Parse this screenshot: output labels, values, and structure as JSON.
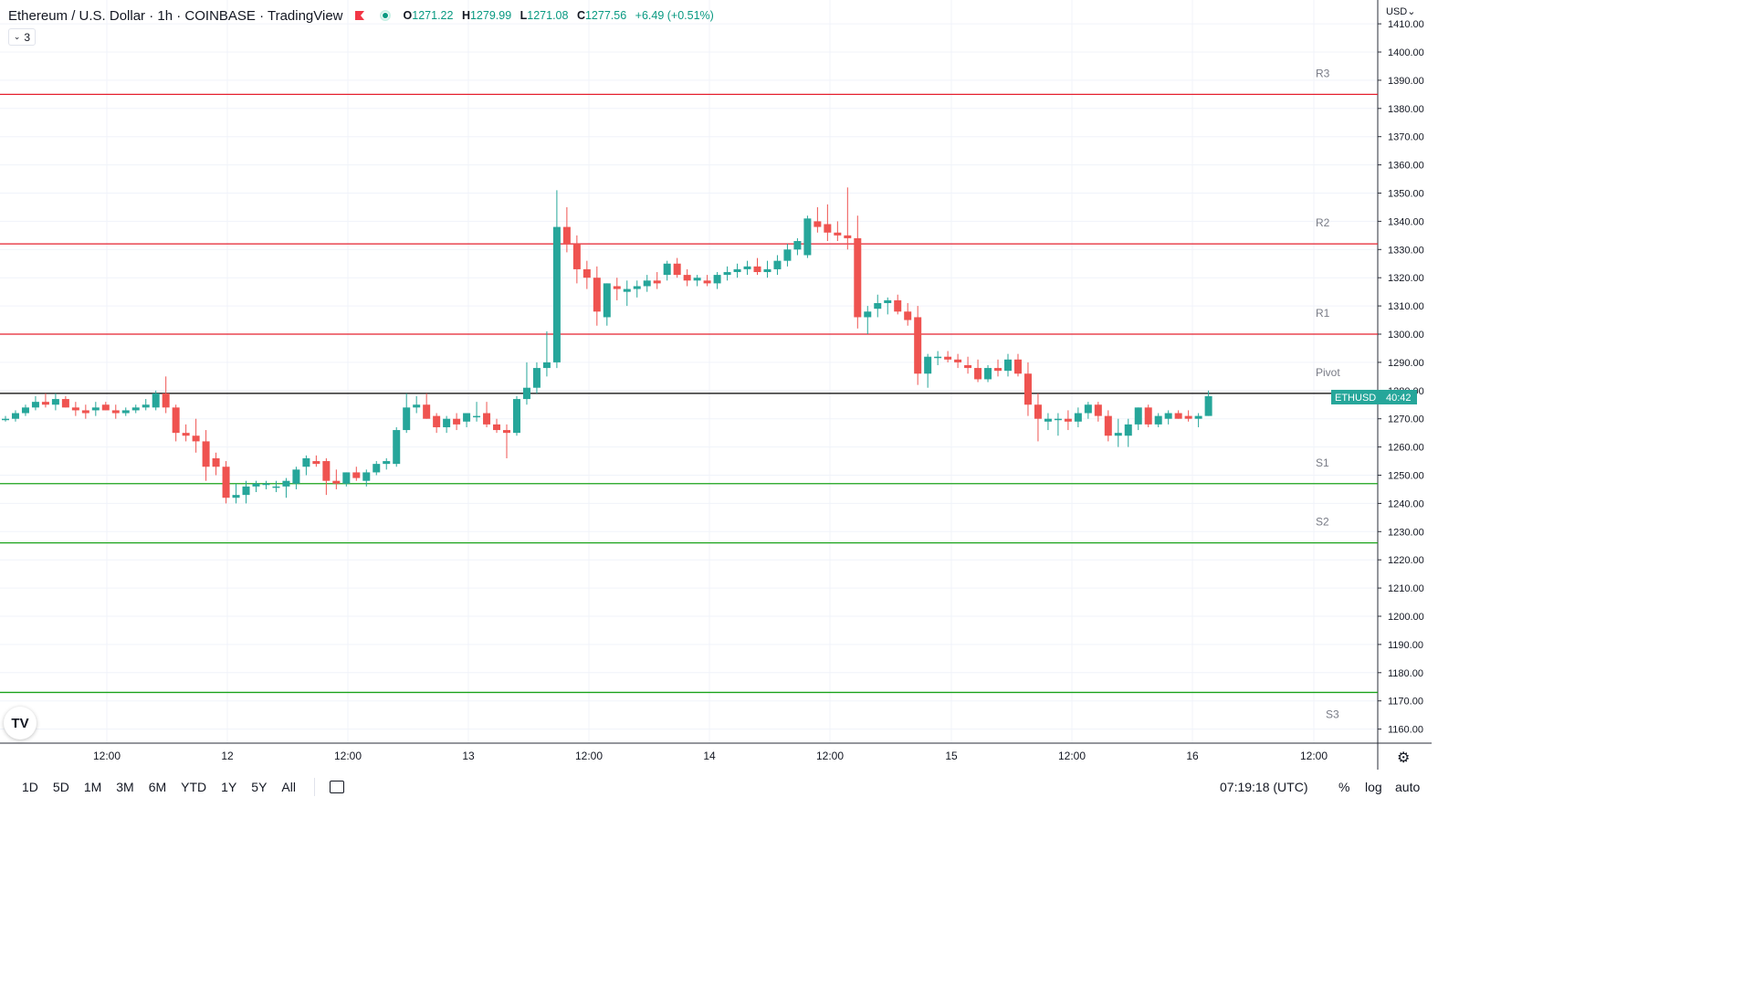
{
  "header": {
    "title": "Ethereum / U.S. Dollar · 1h · COINBASE · TradingView",
    "open_label": "O",
    "open": "1271.22",
    "high_label": "H",
    "high": "1279.99",
    "low_label": "L",
    "low": "1271.08",
    "close_label": "C",
    "close": "1277.56",
    "change": "+6.49 (+0.51%)",
    "indicator_count": "3"
  },
  "currency_label": "USD",
  "price_tag": {
    "symbol": "ETHUSD",
    "countdown": "40:42"
  },
  "logo_text": "TV",
  "footer": {
    "ranges": [
      "1D",
      "5D",
      "1M",
      "3M",
      "6M",
      "YTD",
      "1Y",
      "5Y",
      "All"
    ],
    "clock": "07:19:18 (UTC)",
    "percent": "%",
    "log": "log",
    "auto": "auto"
  },
  "colors": {
    "up": "#26a69a",
    "down": "#ef5350",
    "resistance": "#e5202f",
    "support": "#1aa31a",
    "pivot": "#000000",
    "grid": "#f0f3fa",
    "tag": "#26a69a"
  },
  "chart_data": {
    "type": "candlestick",
    "title": "Ethereum / U.S. Dollar · 1h · COINBASE · TradingView",
    "ylim": [
      1155,
      1415
    ],
    "y_ticks": [
      1160,
      1170,
      1180,
      1190,
      1200,
      1210,
      1220,
      1230,
      1240,
      1250,
      1260,
      1270,
      1280,
      1290,
      1300,
      1310,
      1320,
      1330,
      1340,
      1350,
      1360,
      1370,
      1380,
      1390,
      1400,
      1410
    ],
    "x_tick_labels": [
      "12:00",
      "12",
      "12:00",
      "13",
      "12:00",
      "14",
      "12:00",
      "15",
      "12:00",
      "16",
      "12:00"
    ],
    "levels": [
      {
        "name": "R3",
        "value": 1385
      },
      {
        "name": "R2",
        "value": 1332
      },
      {
        "name": "R1",
        "value": 1300
      },
      {
        "name": "Pivot",
        "value": 1279
      },
      {
        "name": "S1",
        "value": 1247
      },
      {
        "name": "S2",
        "value": 1226
      },
      {
        "name": "S3",
        "value": 1173
      }
    ],
    "ohlc": [
      [
        1270,
        1271,
        1269,
        1270
      ],
      [
        1270,
        1273,
        1269,
        1272
      ],
      [
        1272,
        1275,
        1271,
        1274
      ],
      [
        1274,
        1278,
        1273,
        1276
      ],
      [
        1276,
        1279,
        1274,
        1275
      ],
      [
        1275,
        1279,
        1273,
        1277
      ],
      [
        1277,
        1278,
        1274,
        1274
      ],
      [
        1274,
        1276,
        1271,
        1273
      ],
      [
        1273,
        1275,
        1270,
        1272
      ],
      [
        1273,
        1276,
        1271,
        1274
      ],
      [
        1275,
        1276,
        1273,
        1273
      ],
      [
        1273,
        1275,
        1270,
        1272
      ],
      [
        1272,
        1274,
        1271,
        1273
      ],
      [
        1273,
        1275,
        1272,
        1274
      ],
      [
        1274,
        1277,
        1273,
        1275
      ],
      [
        1274,
        1280,
        1273,
        1279
      ],
      [
        1279,
        1285,
        1272,
        1274
      ],
      [
        1274,
        1275,
        1262,
        1265
      ],
      [
        1265,
        1268,
        1262,
        1264
      ],
      [
        1264,
        1270,
        1258,
        1262
      ],
      [
        1262,
        1266,
        1248,
        1253
      ],
      [
        1256,
        1258,
        1250,
        1253
      ],
      [
        1253,
        1255,
        1240,
        1242
      ],
      [
        1242,
        1247,
        1240,
        1243
      ],
      [
        1243,
        1248,
        1240,
        1246
      ],
      [
        1246,
        1248,
        1244,
        1247
      ],
      [
        1247,
        1248,
        1245,
        1247
      ],
      [
        1246,
        1248,
        1244,
        1246
      ],
      [
        1246,
        1249,
        1242,
        1248
      ],
      [
        1247,
        1253,
        1245,
        1252
      ],
      [
        1253,
        1257,
        1250,
        1256
      ],
      [
        1255,
        1257,
        1253,
        1254
      ],
      [
        1255,
        1256,
        1243,
        1248
      ],
      [
        1248,
        1252,
        1245,
        1247
      ],
      [
        1247,
        1251,
        1246,
        1251
      ],
      [
        1251,
        1253,
        1248,
        1249
      ],
      [
        1248,
        1252,
        1246,
        1251
      ],
      [
        1251,
        1255,
        1250,
        1254
      ],
      [
        1254,
        1256,
        1252,
        1255
      ],
      [
        1254,
        1267,
        1253,
        1266
      ],
      [
        1266,
        1279,
        1265,
        1274
      ],
      [
        1274,
        1278,
        1272,
        1275
      ],
      [
        1275,
        1279,
        1270,
        1270
      ],
      [
        1271,
        1272,
        1265,
        1267
      ],
      [
        1267,
        1271,
        1265,
        1270
      ],
      [
        1270,
        1272,
        1266,
        1268
      ],
      [
        1269,
        1272,
        1267,
        1272
      ],
      [
        1271,
        1276,
        1269,
        1271
      ],
      [
        1272,
        1276,
        1267,
        1268
      ],
      [
        1268,
        1270,
        1265,
        1266
      ],
      [
        1266,
        1268,
        1256,
        1265
      ],
      [
        1265,
        1278,
        1264,
        1277
      ],
      [
        1277,
        1290,
        1275,
        1281
      ],
      [
        1281,
        1290,
        1279,
        1288
      ],
      [
        1288,
        1301,
        1285,
        1290
      ],
      [
        1290,
        1351,
        1288,
        1338
      ],
      [
        1338,
        1345,
        1329,
        1332
      ],
      [
        1332,
        1335,
        1318,
        1323
      ],
      [
        1323,
        1326,
        1316,
        1320
      ],
      [
        1320,
        1324,
        1303,
        1308
      ],
      [
        1306,
        1318,
        1303,
        1318
      ],
      [
        1317,
        1320,
        1312,
        1316
      ],
      [
        1315,
        1319,
        1310,
        1316
      ],
      [
        1316,
        1319,
        1313,
        1317
      ],
      [
        1317,
        1321,
        1315,
        1319
      ],
      [
        1319,
        1322,
        1316,
        1318
      ],
      [
        1321,
        1326,
        1319,
        1325
      ],
      [
        1325,
        1327,
        1320,
        1321
      ],
      [
        1321,
        1323,
        1317,
        1319
      ],
      [
        1319,
        1321,
        1317,
        1320
      ],
      [
        1319,
        1321,
        1317,
        1318
      ],
      [
        1318,
        1322,
        1316,
        1321
      ],
      [
        1321,
        1324,
        1319,
        1322
      ],
      [
        1322,
        1325,
        1320,
        1323
      ],
      [
        1323,
        1326,
        1321,
        1324
      ],
      [
        1324,
        1327,
        1321,
        1322
      ],
      [
        1322,
        1326,
        1320,
        1323
      ],
      [
        1323,
        1328,
        1321,
        1326
      ],
      [
        1326,
        1332,
        1324,
        1330
      ],
      [
        1330,
        1334,
        1328,
        1333
      ],
      [
        1328,
        1342,
        1327,
        1341
      ],
      [
        1340,
        1345,
        1336,
        1338
      ],
      [
        1339,
        1346,
        1333,
        1336
      ],
      [
        1336,
        1340,
        1333,
        1335
      ],
      [
        1335,
        1352,
        1330,
        1334
      ],
      [
        1334,
        1342,
        1302,
        1306
      ],
      [
        1306,
        1310,
        1300,
        1308
      ],
      [
        1309,
        1314,
        1306,
        1311
      ],
      [
        1311,
        1313,
        1307,
        1312
      ],
      [
        1312,
        1314,
        1307,
        1308
      ],
      [
        1308,
        1311,
        1303,
        1305
      ],
      [
        1306,
        1310,
        1282,
        1286
      ],
      [
        1286,
        1293,
        1281,
        1292
      ],
      [
        1292,
        1294,
        1289,
        1292
      ],
      [
        1292,
        1294,
        1290,
        1291
      ],
      [
        1291,
        1293,
        1288,
        1290
      ],
      [
        1289,
        1292,
        1286,
        1288
      ],
      [
        1288,
        1291,
        1283,
        1284
      ],
      [
        1284,
        1289,
        1283,
        1288
      ],
      [
        1288,
        1291,
        1285,
        1287
      ],
      [
        1287,
        1293,
        1285,
        1291
      ],
      [
        1291,
        1293,
        1285,
        1286
      ],
      [
        1286,
        1290,
        1271,
        1275
      ],
      [
        1275,
        1279,
        1262,
        1270
      ],
      [
        1269,
        1272,
        1266,
        1270
      ],
      [
        1270,
        1272,
        1264,
        1270
      ],
      [
        1270,
        1273,
        1266,
        1269
      ],
      [
        1269,
        1274,
        1267,
        1272
      ],
      [
        1272,
        1276,
        1270,
        1275
      ],
      [
        1275,
        1276,
        1269,
        1271
      ],
      [
        1271,
        1273,
        1262,
        1264
      ],
      [
        1264,
        1270,
        1260,
        1265
      ],
      [
        1264,
        1270,
        1260,
        1268
      ],
      [
        1268,
        1274,
        1266,
        1274
      ],
      [
        1274,
        1275,
        1267,
        1268
      ],
      [
        1268,
        1272,
        1267,
        1271
      ],
      [
        1270,
        1273,
        1268,
        1272
      ],
      [
        1272,
        1273,
        1270,
        1270
      ],
      [
        1271,
        1273,
        1269,
        1270
      ],
      [
        1270,
        1272,
        1267,
        1271
      ],
      [
        1271,
        1280,
        1271,
        1278
      ]
    ]
  }
}
